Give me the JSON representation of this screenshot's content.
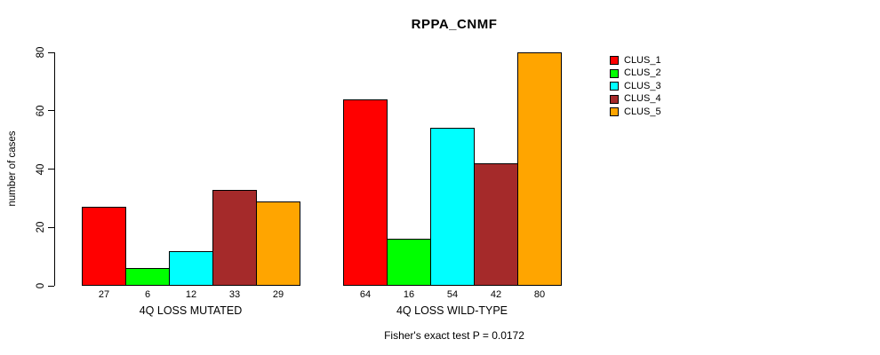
{
  "chart_data": {
    "type": "bar",
    "title": "RPPA_CNMF",
    "ylabel": "number of cases",
    "xlabel": "",
    "ylim": [
      0,
      80
    ],
    "yticks": [
      0,
      20,
      40,
      60,
      80
    ],
    "grid": false,
    "legend_position": "top-right",
    "bar_value_labels_shown": true,
    "groups": [
      "4Q LOSS MUTATED",
      "4Q LOSS WILD-TYPE"
    ],
    "series": [
      {
        "name": "CLUS_1",
        "color": "#FF0000",
        "values": [
          27,
          64
        ]
      },
      {
        "name": "CLUS_2",
        "color": "#00FF00",
        "values": [
          6,
          16
        ]
      },
      {
        "name": "CLUS_3",
        "color": "#00FFFF",
        "values": [
          12,
          54
        ]
      },
      {
        "name": "CLUS_4",
        "color": "#A52A2A",
        "values": [
          33,
          42
        ]
      },
      {
        "name": "CLUS_5",
        "color": "#FFA500",
        "values": [
          29,
          80
        ]
      }
    ],
    "annotation": "Fisher's exact test P = 0.0172"
  },
  "layout_colors": {
    "background": "#ffffff",
    "axis": "#000000",
    "text": "#000000"
  }
}
